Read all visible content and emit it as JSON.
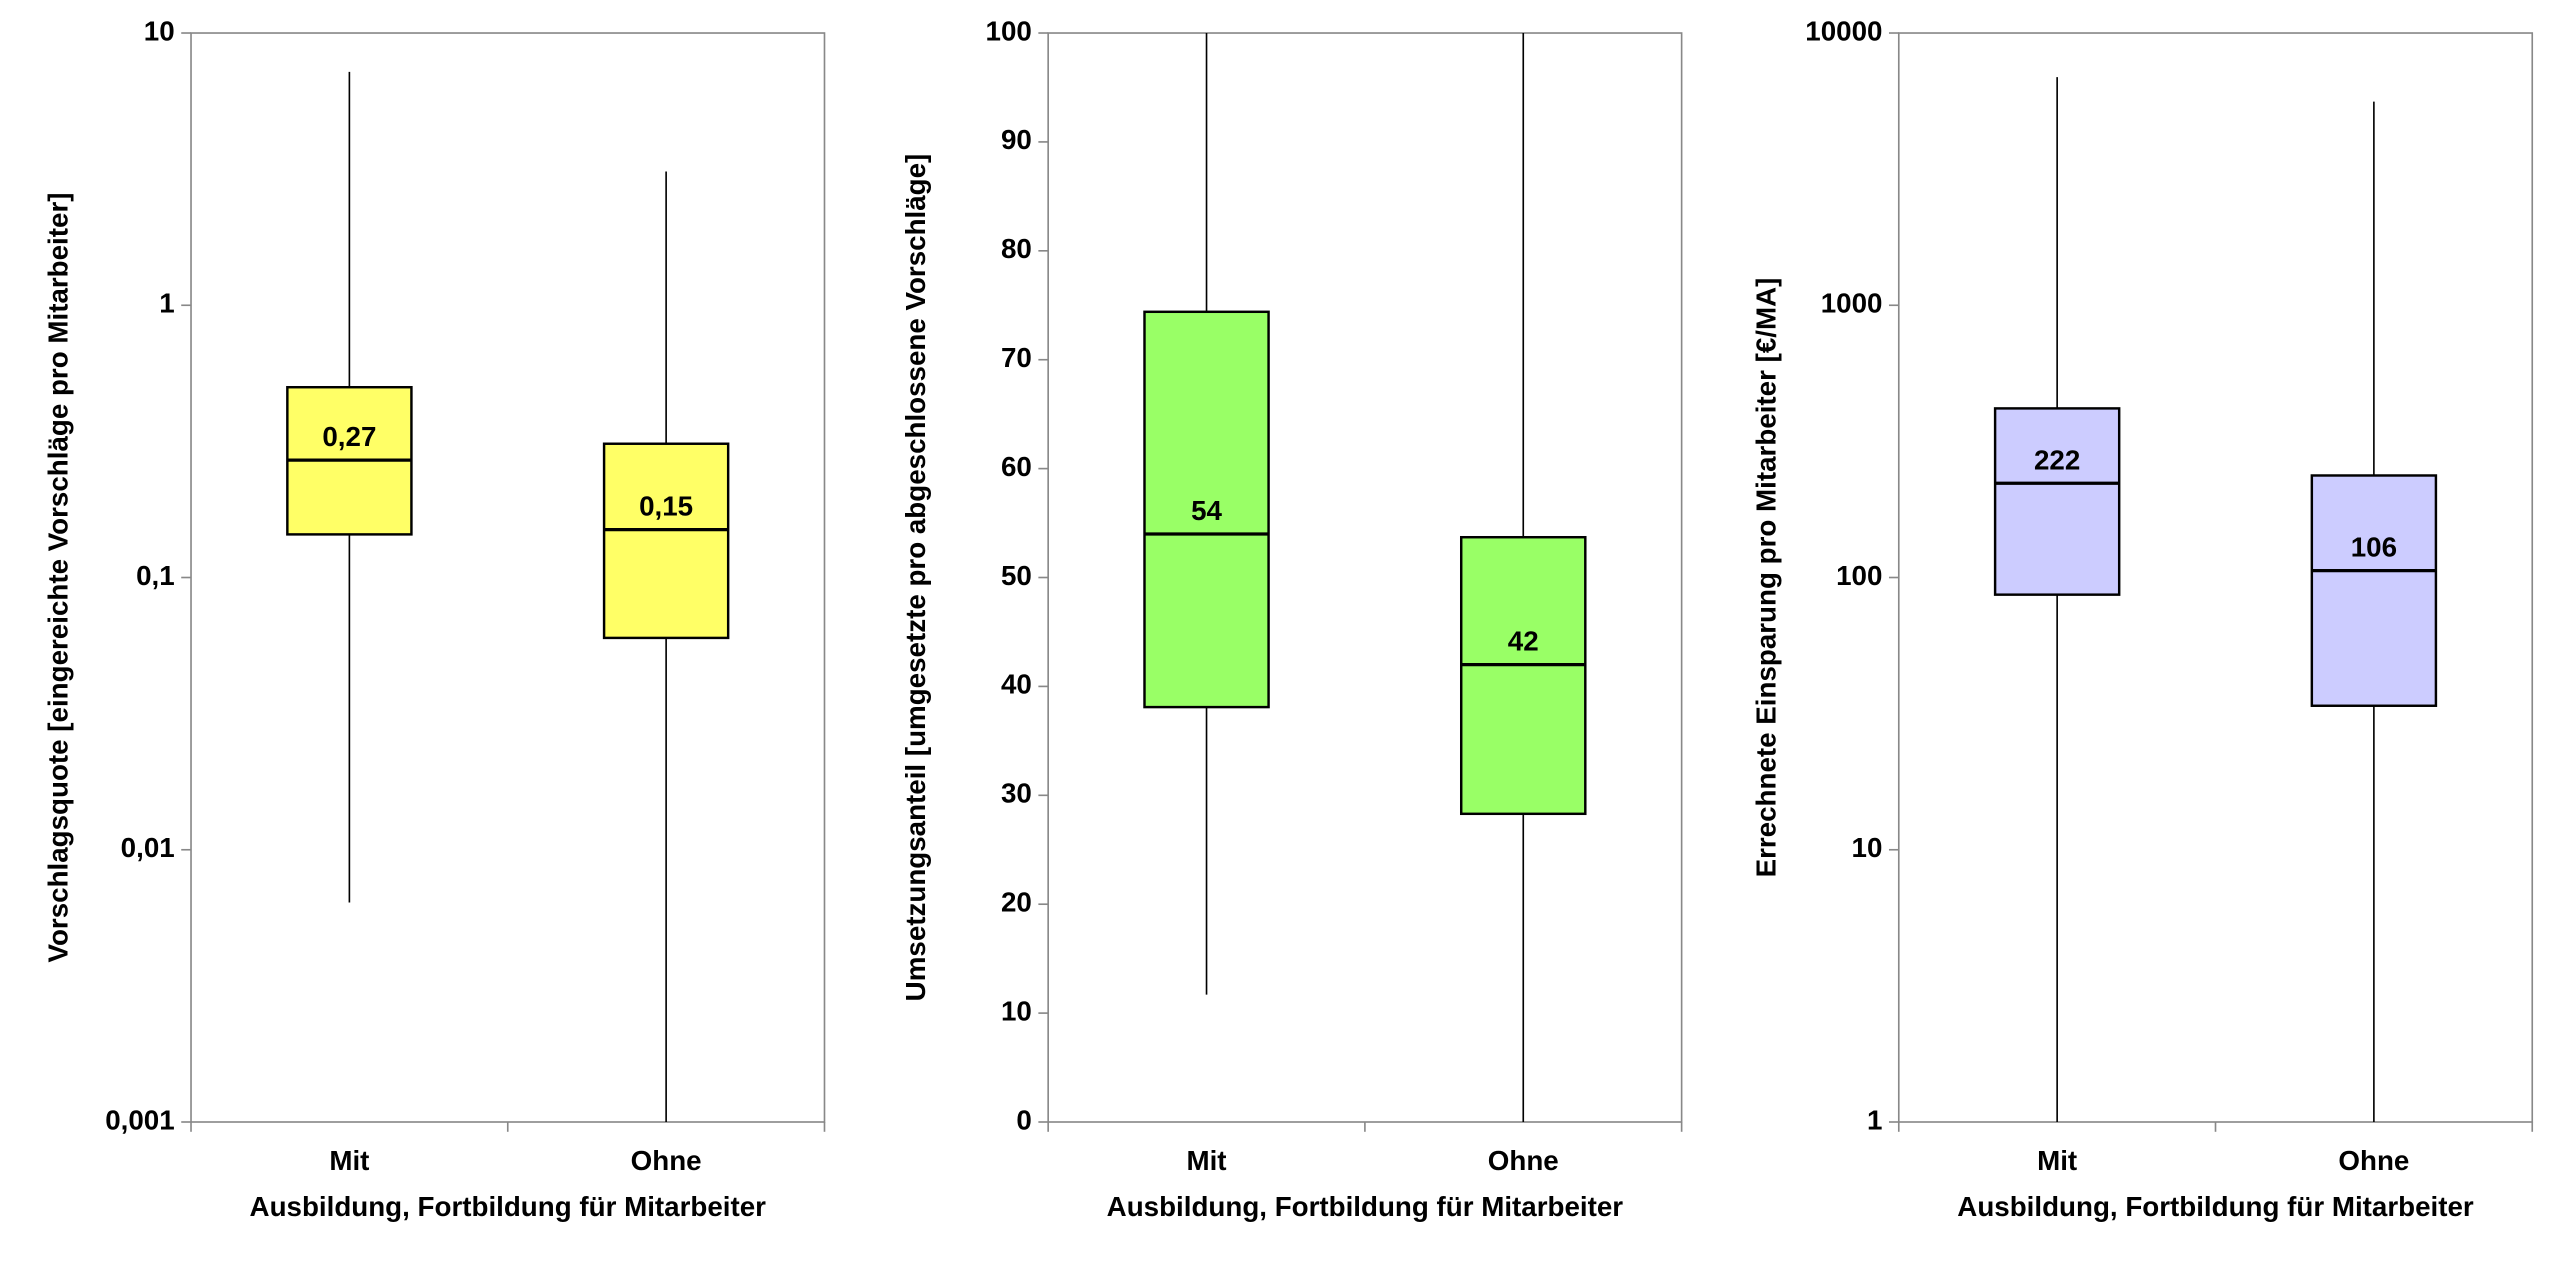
{
  "chart_data": [
    {
      "type": "box",
      "ylabel": "Vorschlagsquote [eingereichte Vorschläge pro Mitarbeiter]",
      "xlabel": "Ausbildung, Fortbildung für Mitarbeiter",
      "categories": [
        "Mit",
        "Ohne"
      ],
      "color": "#ffff66",
      "log_scale": true,
      "ylim": [
        0.001,
        10
      ],
      "yticks": [
        {
          "value": 0.001,
          "label": "0,001"
        },
        {
          "value": 0.01,
          "label": "0,01"
        },
        {
          "value": 0.1,
          "label": "0,1"
        },
        1,
        10
      ],
      "whisker_low": [
        0.0064,
        0.001
      ],
      "q1": [
        0.144,
        0.06
      ],
      "median": [
        0.27,
        0.15
      ],
      "median_labels": [
        "0,27",
        "0,15"
      ],
      "q3": [
        0.5,
        0.31
      ],
      "whisker_high": [
        7.2,
        3.1
      ]
    },
    {
      "type": "box",
      "ylabel": "Umsetzungsanteil [umgesetzte pro abgeschlossene Vorschläge]",
      "xlabel": "Ausbildung, Fortbildung für Mitarbeiter",
      "categories": [
        "Mit",
        "Ohne"
      ],
      "color": "#99ff66",
      "log_scale": false,
      "ylim": [
        0,
        100
      ],
      "yticks": [
        0,
        10,
        20,
        30,
        40,
        50,
        60,
        70,
        80,
        90,
        100
      ],
      "whisker_low": [
        11.7,
        0
      ],
      "q1": [
        38.1,
        28.3
      ],
      "median": [
        54,
        42
      ],
      "q3": [
        74.4,
        53.7
      ],
      "whisker_high": [
        100,
        100
      ]
    },
    {
      "type": "box",
      "ylabel": "Errechnete Einsparung pro Mitarbeiter [€/MA]",
      "xlabel": "Ausbildung, Fortbildung für Mitarbeiter",
      "categories": [
        "Mit",
        "Ohne"
      ],
      "color": "#ccccff",
      "log_scale": true,
      "ylim": [
        1,
        10000
      ],
      "yticks": [
        1,
        10,
        100,
        1000,
        10000
      ],
      "whisker_low": [
        1,
        1
      ],
      "q1": [
        86.5,
        33.8
      ],
      "median": [
        222,
        106
      ],
      "q3": [
        418,
        237
      ],
      "whisker_high": [
        6890,
        5600
      ]
    }
  ]
}
